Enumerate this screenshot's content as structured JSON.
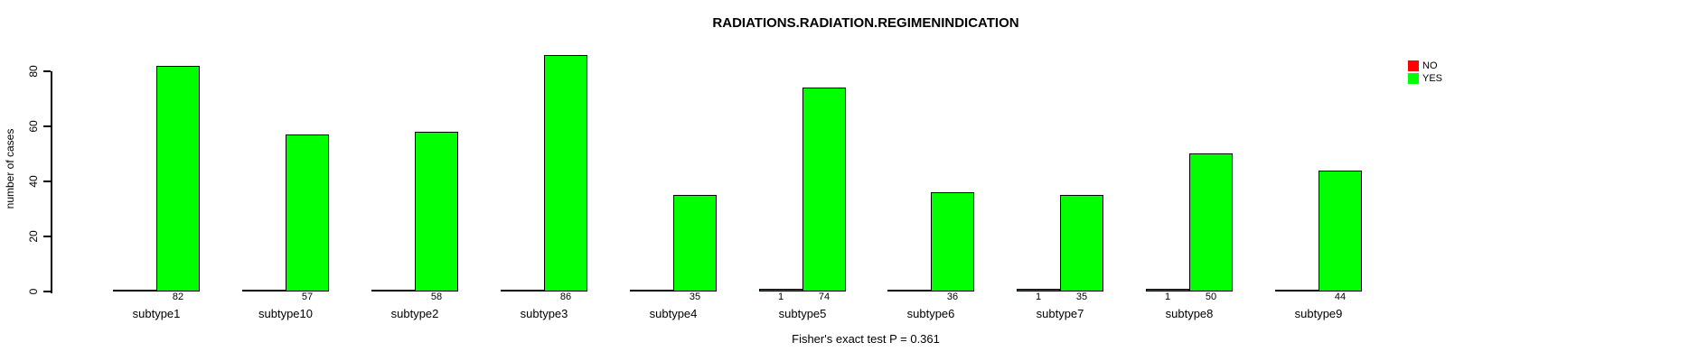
{
  "title": "RADIATIONS.RADIATION.REGIMENINDICATION",
  "ylabel": "number of cases",
  "caption": "Fisher's exact test P = 0.361",
  "legend": {
    "items": [
      {
        "label": "NO",
        "color": "#FF0000"
      },
      {
        "label": "YES",
        "color": "#00FF00"
      }
    ]
  },
  "chart_data": {
    "type": "bar",
    "title": "RADIATIONS.RADIATION.REGIMENINDICATION",
    "xlabel": "",
    "ylabel": "number of cases",
    "annotation": "Fisher's exact test P = 0.361",
    "grid": false,
    "legend_position": "top-right",
    "yticks": [
      0,
      20,
      40,
      60,
      80
    ],
    "ylim": [
      0,
      88
    ],
    "categories": [
      "subtype1",
      "subtype10",
      "subtype2",
      "subtype3",
      "subtype4",
      "subtype5",
      "subtype6",
      "subtype7",
      "subtype8",
      "subtype9"
    ],
    "series": [
      {
        "name": "NO",
        "color": "#FF0000",
        "values": [
          0,
          0,
          0,
          0,
          0,
          1,
          0,
          1,
          1,
          0
        ]
      },
      {
        "name": "YES",
        "color": "#00FF00",
        "values": [
          82,
          57,
          58,
          86,
          35,
          74,
          36,
          35,
          50,
          44
        ]
      }
    ],
    "bar_value_labels_shown_when_nonzero": true
  }
}
